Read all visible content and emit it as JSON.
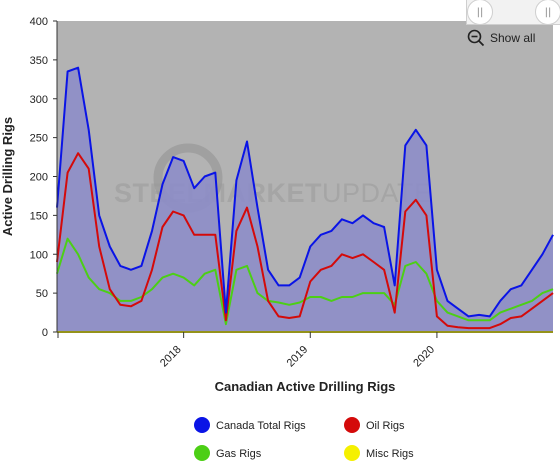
{
  "zoom": {
    "show_all_label": "Show all",
    "handle_glyph": "||"
  },
  "watermark": {
    "part1": "STEEL",
    "part2": "MARKET",
    "part3": "UPDATE"
  },
  "colors": {
    "plot_bg": "#b3b3b3",
    "total": "#0a14e6",
    "oil": "#d40a0a",
    "gas": "#4ccf15",
    "misc": "#f5f000",
    "fill": "#8d8dc8"
  },
  "chart_data": {
    "type": "line",
    "title": "",
    "xlabel": "Canadian Active Drilling Rigs",
    "ylabel": "Active Drilling Rigs",
    "ylim": [
      0,
      400
    ],
    "yticks": [
      0,
      50,
      100,
      150,
      200,
      250,
      300,
      350,
      400
    ],
    "x_range": [
      "2017-01",
      "2020-12"
    ],
    "x_ticks": [
      {
        "x": "2018-01",
        "label": "2018"
      },
      {
        "x": "2019-01",
        "label": "2019"
      },
      {
        "x": "2020-01",
        "label": "2020"
      }
    ],
    "grid": false,
    "legend_position": "bottom",
    "legend": [
      "Canada Total Rigs",
      "Oil Rigs",
      "Gas Rigs",
      "Misc Rigs"
    ],
    "x": [
      "2017-01",
      "2017-02",
      "2017-03",
      "2017-04",
      "2017-05",
      "2017-06",
      "2017-07",
      "2017-08",
      "2017-09",
      "2017-10",
      "2017-11",
      "2017-12",
      "2018-01",
      "2018-02",
      "2018-03",
      "2018-04",
      "2018-05",
      "2018-06",
      "2018-07",
      "2018-08",
      "2018-09",
      "2018-10",
      "2018-11",
      "2018-12",
      "2019-01",
      "2019-02",
      "2019-03",
      "2019-04",
      "2019-05",
      "2019-06",
      "2019-07",
      "2019-08",
      "2019-09",
      "2019-10",
      "2019-11",
      "2019-12",
      "2020-01",
      "2020-02",
      "2020-03",
      "2020-04",
      "2020-05",
      "2020-06",
      "2020-07",
      "2020-08",
      "2020-09",
      "2020-10",
      "2020-11",
      "2020-12"
    ],
    "series": [
      {
        "name": "Canada Total Rigs",
        "color": "#0a14e6",
        "values": [
          160,
          335,
          340,
          260,
          150,
          110,
          85,
          80,
          85,
          130,
          190,
          225,
          220,
          185,
          200,
          205,
          25,
          195,
          245,
          160,
          80,
          60,
          60,
          70,
          110,
          125,
          130,
          145,
          140,
          150,
          140,
          135,
          60,
          240,
          260,
          240,
          80,
          40,
          30,
          20,
          22,
          20,
          40,
          55,
          60,
          80,
          100,
          125
        ]
      },
      {
        "name": "Oil Rigs",
        "color": "#d40a0a",
        "values": [
          90,
          205,
          230,
          210,
          110,
          55,
          35,
          33,
          40,
          80,
          135,
          155,
          150,
          125,
          125,
          125,
          15,
          130,
          160,
          110,
          40,
          20,
          18,
          20,
          65,
          80,
          85,
          100,
          95,
          100,
          90,
          80,
          25,
          155,
          170,
          150,
          20,
          8,
          6,
          5,
          5,
          5,
          10,
          18,
          20,
          30,
          40,
          50
        ]
      },
      {
        "name": "Gas Rigs",
        "color": "#4ccf15",
        "values": [
          75,
          120,
          100,
          70,
          55,
          50,
          40,
          40,
          45,
          55,
          70,
          75,
          70,
          60,
          75,
          80,
          10,
          80,
          85,
          50,
          40,
          38,
          35,
          38,
          45,
          45,
          40,
          45,
          45,
          50,
          50,
          50,
          35,
          85,
          90,
          75,
          40,
          25,
          20,
          15,
          15,
          15,
          25,
          30,
          35,
          40,
          50,
          55
        ]
      },
      {
        "name": "Misc Rigs",
        "color": "#f5f000",
        "values": [
          0,
          0,
          0,
          0,
          0,
          0,
          0,
          0,
          0,
          0,
          0,
          0,
          0,
          0,
          0,
          0,
          0,
          0,
          0,
          0,
          0,
          0,
          0,
          0,
          0,
          0,
          0,
          0,
          0,
          0,
          0,
          0,
          0,
          0,
          0,
          0,
          0,
          0,
          0,
          0,
          0,
          0,
          0,
          0,
          0,
          0,
          0,
          0
        ]
      }
    ]
  }
}
